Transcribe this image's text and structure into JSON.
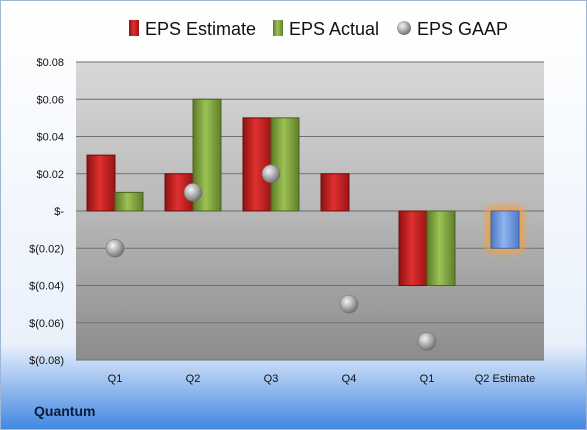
{
  "company": "Quantum",
  "chart_data": {
    "type": "bar",
    "categories": [
      "Q1",
      "Q2",
      "Q3",
      "Q4",
      "Q1",
      "Q2 Estimate"
    ],
    "series": [
      {
        "name": "EPS Estimate",
        "values": [
          0.03,
          0.02,
          0.05,
          0.02,
          -0.04,
          null
        ],
        "color": "#cc2222"
      },
      {
        "name": "EPS Actual",
        "values": [
          0.01,
          0.06,
          0.05,
          null,
          -0.04,
          null
        ],
        "color": "#88aa44"
      },
      {
        "name": "EPS GAAP",
        "values": [
          -0.02,
          0.01,
          0.02,
          -0.05,
          -0.07,
          null
        ],
        "color": "#a0a0a0"
      }
    ],
    "highlight": {
      "category": "Q2 Estimate",
      "value": -0.02,
      "color": "#6f9be0",
      "glow": "#f4a040"
    },
    "ylim": [
      -0.08,
      0.08
    ],
    "yticks": [
      {
        "value": 0.08,
        "label": "$0.08"
      },
      {
        "value": 0.06,
        "label": "$0.06"
      },
      {
        "value": 0.04,
        "label": "$0.04"
      },
      {
        "value": 0.02,
        "label": "$0.02"
      },
      {
        "value": 0,
        "label": "$-"
      },
      {
        "value": -0.02,
        "label": "$(0.02)"
      },
      {
        "value": -0.04,
        "label": "$(0.04)"
      },
      {
        "value": -0.06,
        "label": "$(0.06)"
      },
      {
        "value": -0.08,
        "label": "$(0.08)"
      }
    ],
    "grid": true,
    "legend_position": "top"
  }
}
